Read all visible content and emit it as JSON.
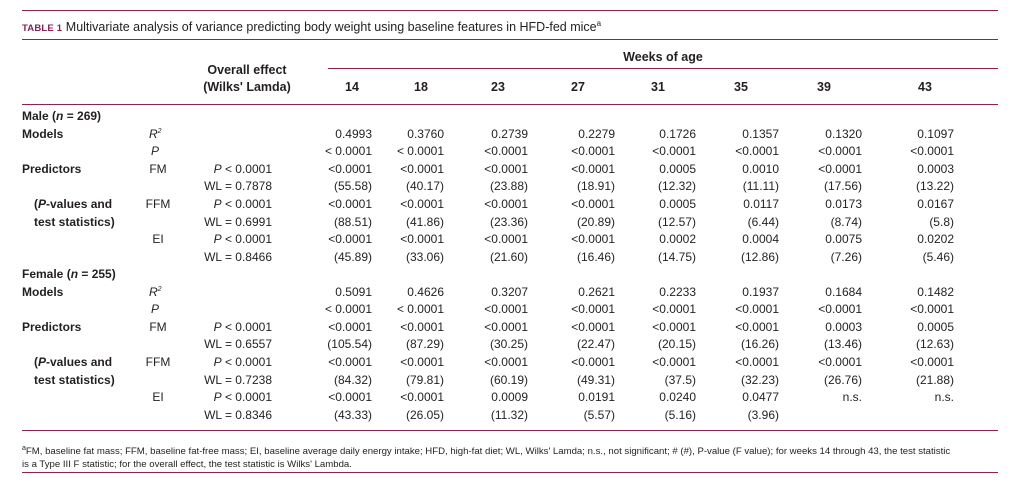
{
  "caption": {
    "label": "TABLE 1",
    "title": "Multivariate analysis of variance predicting body weight using baseline features in HFD-fed mice",
    "sup": "a"
  },
  "header": {
    "overall_line1": "Overall effect",
    "overall_line2": "(Wilks' Lamda)",
    "weeks_label": "Weeks of age",
    "weeks": [
      "14",
      "18",
      "23",
      "27",
      "31",
      "35",
      "39",
      "43"
    ]
  },
  "male": {
    "group": {
      "pre": "Male (",
      "n": "n",
      "post": " = 269)"
    },
    "models_label": "Models",
    "r2": {
      "sym": "R",
      "sup": "2",
      "values": [
        "0.4993",
        "0.3760",
        "0.2739",
        "0.2279",
        "0.1726",
        "0.1357",
        "0.1320",
        "0.1097"
      ]
    },
    "p": {
      "sym": "P",
      "values": [
        "< 0.0001",
        "< 0.0001",
        "<0.0001",
        "<0.0001",
        "<0.0001",
        "<0.0001",
        "<0.0001",
        "<0.0001"
      ]
    },
    "predictors_label": "Predictors",
    "note_line1_pre": "(",
    "note_line1_it": "P",
    "note_line1_post": "-values and",
    "note_line2": "test statistics)",
    "fm": {
      "name": "FM",
      "overall_p_sym": "P",
      "overall_p": " < 0.0001",
      "overall_wl": "WL = 0.7878",
      "p": [
        "<0.0001",
        "<0.0001",
        "<0.0001",
        "<0.0001",
        "0.0005",
        "0.0010",
        "<0.0001",
        "0.0003"
      ],
      "stat": [
        "(55.58)",
        "(40.17)",
        "(23.88)",
        "(18.91)",
        "(12.32)",
        "(11.11)",
        "(17.56)",
        "(13.22)"
      ]
    },
    "ffm": {
      "name": "FFM",
      "overall_p_sym": "P",
      "overall_p": " < 0.0001",
      "overall_wl": "WL = 0.6991",
      "p": [
        "<0.0001",
        "<0.0001",
        "<0.0001",
        "<0.0001",
        "0.0005",
        "0.0117",
        "0.0173",
        "0.0167"
      ],
      "stat": [
        "(88.51)",
        "(41.86)",
        "(23.36)",
        "(20.89)",
        "(12.57)",
        "(6.44)",
        "(8.74)",
        "(5.8)"
      ]
    },
    "ei": {
      "name": "EI",
      "overall_p_sym": "P",
      "overall_p": " < 0.0001",
      "overall_wl": "WL = 0.8466",
      "p": [
        "<0.0001",
        "<0.0001",
        "<0.0001",
        "<0.0001",
        "0.0002",
        "0.0004",
        "0.0075",
        "0.0202"
      ],
      "stat": [
        "(45.89)",
        "(33.06)",
        "(21.60)",
        "(16.46)",
        "(14.75)",
        "(12.86)",
        "(7.26)",
        "(5.46)"
      ]
    }
  },
  "female": {
    "group": {
      "pre": "Female (",
      "n": "n",
      "post": " = 255)"
    },
    "models_label": "Models",
    "r2": {
      "sym": "R",
      "sup": "2",
      "values": [
        "0.5091",
        "0.4626",
        "0.3207",
        "0.2621",
        "0.2233",
        "0.1937",
        "0.1684",
        "0.1482"
      ]
    },
    "p": {
      "sym": "P",
      "values": [
        "< 0.0001",
        "< 0.0001",
        "<0.0001",
        "<0.0001",
        "<0.0001",
        "<0.0001",
        "<0.0001",
        "<0.0001"
      ]
    },
    "predictors_label": "Predictors",
    "note_line1_pre": "(",
    "note_line1_it": "P",
    "note_line1_post": "-values and",
    "note_line2": "test statistics)",
    "fm": {
      "name": "FM",
      "overall_p_sym": "P",
      "overall_p": " < 0.0001",
      "overall_wl": "WL = 0.6557",
      "p": [
        "<0.0001",
        "<0.0001",
        "<0.0001",
        "<0.0001",
        "<0.0001",
        "<0.0001",
        "0.0003",
        "0.0005"
      ],
      "stat": [
        "(105.54)",
        "(87.29)",
        "(30.25)",
        "(22.47)",
        "(20.15)",
        "(16.26)",
        "(13.46)",
        "(12.63)"
      ]
    },
    "ffm": {
      "name": "FFM",
      "overall_p_sym": "P",
      "overall_p": " < 0.0001",
      "overall_wl": "WL = 0.7238",
      "p": [
        "<0.0001",
        "<0.0001",
        "<0.0001",
        "<0.0001",
        "<0.0001",
        "<0.0001",
        "<0.0001",
        "<0.0001"
      ],
      "stat": [
        "(84.32)",
        "(79.81)",
        "(60.19)",
        "(49.31)",
        "(37.5)",
        "(32.23)",
        "(26.76)",
        "(21.88)"
      ]
    },
    "ei": {
      "name": "EI",
      "overall_p_sym": "P",
      "overall_p": " < 0.0001",
      "overall_wl": "WL = 0.8346",
      "p": [
        "<0.0001",
        "<0.0001",
        "0.0009",
        "0.0191",
        "0.0240",
        "0.0477",
        "n.s.",
        "n.s."
      ],
      "stat": [
        "(43.33)",
        "(26.05)",
        "(11.32)",
        "(5.57)",
        "(5.16)",
        "(3.96)",
        "",
        ""
      ]
    }
  },
  "footnote": {
    "sup": "a",
    "line1": "FM, baseline fat mass; FFM, baseline fat-free mass; EI, baseline average daily energy intake; HFD, high-fat diet; WL, Wilks' Lamda; n.s., not significant; # (#), P-value (F value); for weeks 14 through 43, the test statistic",
    "line2": "is a Type III F statistic; for the overall effect, the test statistic is Wilks' Lambda."
  },
  "colors": {
    "accent": "#8a2252",
    "text": "#231f20"
  }
}
